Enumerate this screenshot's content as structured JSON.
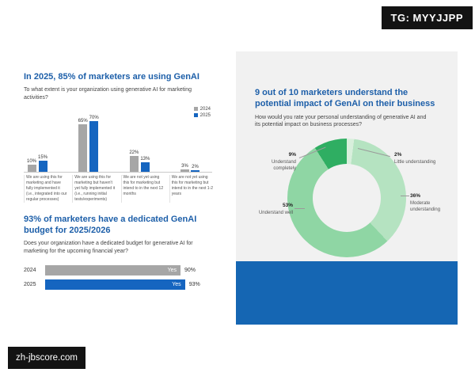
{
  "badges": {
    "top_right": "TG: MYYJJPP",
    "bottom_left": "zh-jbscore.com"
  },
  "colors": {
    "heading_blue": "#1d5fa9",
    "bar_2024": "#a6a6a6",
    "bar_2025": "#1565c0",
    "band_blue": "#1566b3",
    "card_bg": "#f1f1f1",
    "donut": [
      "#d8efdc",
      "#b5e3c1",
      "#8fd6a4",
      "#2fae62"
    ]
  },
  "chart_data": [
    {
      "type": "bar",
      "title": "In 2025, 85% of marketers are using GenAI",
      "question": "To what extent is your organization using generative AI for marketing activities?",
      "legend": [
        "2024",
        "2025"
      ],
      "categories": [
        "We are using this for marketing and have fully implemented it (i.e., integrated into our regular processes)",
        "We are using this for marketing but haven't yet fully implemented it (i.e., running initial tests/experiments)",
        "We are not yet using this for marketing but intend to in the next 12 months",
        "We are not yet using this for marketing but intend to in the next 1-2 years"
      ],
      "series": [
        {
          "name": "2024",
          "values": [
            10,
            65,
            22,
            3
          ]
        },
        {
          "name": "2025",
          "values": [
            15,
            70,
            13,
            2
          ]
        }
      ],
      "unit": "%",
      "ylim": [
        0,
        75
      ],
      "grid": false,
      "legend_position": "top-right"
    },
    {
      "type": "bar",
      "orientation": "horizontal",
      "title": "93% of marketers have a dedicated GenAI budget for 2025/2026",
      "question": "Does your organization have a dedicated budget for generative AI for marketing for the upcoming financial year?",
      "categories": [
        "2024",
        "2025"
      ],
      "values": [
        90,
        93
      ],
      "bar_label": "Yes",
      "unit": "%",
      "xlim": [
        0,
        100
      ]
    },
    {
      "type": "pie",
      "subtype": "donut",
      "title": "9 out of 10 marketers understand the potential impact of GenAI on their business",
      "question": "How would you rate your personal understanding of generative AI and its potential impact on business processes?",
      "segments": [
        {
          "label": "Little understanding",
          "value": 2
        },
        {
          "label": "Moderate understanding",
          "value": 36
        },
        {
          "label": "Understand well",
          "value": 53
        },
        {
          "label": "Understand completely",
          "value": 9
        }
      ],
      "unit": "%",
      "start_angle": "top",
      "direction": "clockwise"
    }
  ]
}
